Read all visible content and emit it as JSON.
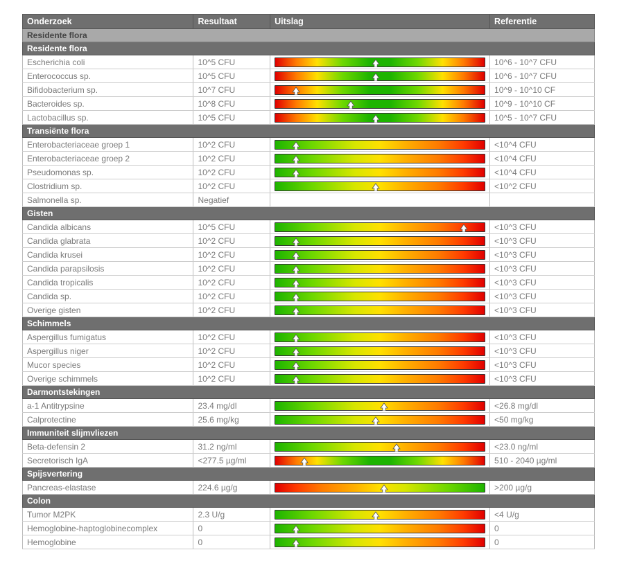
{
  "headers": {
    "onderzoek": "Onderzoek",
    "resultaat": "Resultaat",
    "uitslag": "Uitslag",
    "referentie": "Referentie"
  },
  "style": {
    "header_bg": "#6f6f6f",
    "header_text": "#ffffff",
    "section_bg": "#a9a9a9",
    "section_text": "#444444",
    "row_text": "#7a7a7a",
    "border": "#bbbbbb",
    "gauge_border": "#333333",
    "marker_fill": "#ffffff",
    "marker_stroke": "#555555",
    "font_size_pt": 9,
    "gradient_gyr": [
      "#1eb400",
      "#6fd800",
      "#d7e600",
      "#ffe000",
      "#ffb000",
      "#ff7a00",
      "#ff3a00",
      "#e00000"
    ],
    "gradient_rgr": [
      "#e00000",
      "#ff7a00",
      "#ffe000",
      "#6fd800",
      "#1eb400",
      "#1eb400",
      "#6fd800",
      "#ffe000",
      "#ff7a00",
      "#e00000"
    ],
    "gradient_ryg": [
      "#e00000",
      "#ff3a00",
      "#ff7a00",
      "#ffb000",
      "#ffe000",
      "#d7e600",
      "#6fd800",
      "#1eb400"
    ]
  },
  "section_top": {
    "title": "Residente flora"
  },
  "groups": [
    {
      "title": "Residente flora",
      "rows": [
        {
          "name": "Escherichia coli",
          "result": "10^5 CFU",
          "ref": "10^6 - 10^7 CFU",
          "gradient": "rgr",
          "marker_pct": 48
        },
        {
          "name": "Enterococcus sp.",
          "result": "10^5 CFU",
          "ref": "10^6 - 10^7 CFU",
          "gradient": "rgr",
          "marker_pct": 48
        },
        {
          "name": "Bifidobacterium sp.",
          "result": "10^7 CFU",
          "ref": "10^9 - 10^10 CF",
          "gradient": "rgr",
          "marker_pct": 10
        },
        {
          "name": "Bacteroides sp.",
          "result": "10^8 CFU",
          "ref": "10^9 - 10^10 CF",
          "gradient": "rgr",
          "marker_pct": 36
        },
        {
          "name": "Lactobacillus sp.",
          "result": "10^5 CFU",
          "ref": "10^5 - 10^7 CFU",
          "gradient": "rgr",
          "marker_pct": 48
        }
      ]
    },
    {
      "title": "Transiënte flora",
      "rows": [
        {
          "name": "Enterobacteriaceae groep 1",
          "result": "10^2 CFU",
          "ref": "<10^4 CFU",
          "gradient": "gyr",
          "marker_pct": 10
        },
        {
          "name": "Enterobacteriaceae groep 2",
          "result": "10^2 CFU",
          "ref": "<10^4 CFU",
          "gradient": "gyr",
          "marker_pct": 10
        },
        {
          "name": "Pseudomonas sp.",
          "result": "10^2 CFU",
          "ref": "<10^4 CFU",
          "gradient": "gyr",
          "marker_pct": 10
        },
        {
          "name": "Clostridium sp.",
          "result": "10^2 CFU",
          "ref": "<10^2 CFU",
          "gradient": "gyr",
          "marker_pct": 48
        },
        {
          "name": "Salmonella sp.",
          "result": "Negatief",
          "ref": "",
          "gradient": null,
          "marker_pct": null
        }
      ]
    },
    {
      "title": "Gisten",
      "rows": [
        {
          "name": "Candida albicans",
          "result": "10^5 CFU",
          "ref": "<10^3 CFU",
          "gradient": "gyr",
          "marker_pct": 90
        },
        {
          "name": "Candida glabrata",
          "result": "10^2 CFU",
          "ref": "<10^3 CFU",
          "gradient": "gyr",
          "marker_pct": 10
        },
        {
          "name": "Candida krusei",
          "result": "10^2 CFU",
          "ref": "<10^3 CFU",
          "gradient": "gyr",
          "marker_pct": 10
        },
        {
          "name": "Candida parapsilosis",
          "result": "10^2 CFU",
          "ref": "<10^3 CFU",
          "gradient": "gyr",
          "marker_pct": 10
        },
        {
          "name": "Candida tropicalis",
          "result": "10^2 CFU",
          "ref": "<10^3 CFU",
          "gradient": "gyr",
          "marker_pct": 10
        },
        {
          "name": "Candida sp.",
          "result": "10^2 CFU",
          "ref": "<10^3 CFU",
          "gradient": "gyr",
          "marker_pct": 10
        },
        {
          "name": "Overige gisten",
          "result": "10^2 CFU",
          "ref": "<10^3 CFU",
          "gradient": "gyr",
          "marker_pct": 10
        }
      ]
    },
    {
      "title": "Schimmels",
      "rows": [
        {
          "name": "Aspergillus fumigatus",
          "result": "10^2 CFU",
          "ref": "<10^3 CFU",
          "gradient": "gyr",
          "marker_pct": 10
        },
        {
          "name": "Aspergillus niger",
          "result": "10^2 CFU",
          "ref": "<10^3 CFU",
          "gradient": "gyr",
          "marker_pct": 10
        },
        {
          "name": "Mucor species",
          "result": "10^2 CFU",
          "ref": "<10^3 CFU",
          "gradient": "gyr",
          "marker_pct": 10
        },
        {
          "name": "Overige schimmels",
          "result": "10^2 CFU",
          "ref": "<10^3 CFU",
          "gradient": "gyr",
          "marker_pct": 10
        }
      ]
    },
    {
      "title": "Darmontstekingen",
      "rows": [
        {
          "name": "a-1 Antitrypsine",
          "result": "23.4 mg/dl",
          "ref": "<26.8 mg/dl",
          "gradient": "gyr",
          "marker_pct": 52
        },
        {
          "name": "Calprotectine",
          "result": "25.6 mg/kg",
          "ref": "<50 mg/kg",
          "gradient": "gyr",
          "marker_pct": 48
        }
      ]
    },
    {
      "title": "Immuniteit slijmvliezen",
      "rows": [
        {
          "name": "Beta-defensin 2",
          "result": "31.2 ng/ml",
          "ref": "<23.0 ng/ml",
          "gradient": "gyr",
          "marker_pct": 58
        },
        {
          "name": "Secretorisch IgA",
          "result": "<277.5 µg/ml",
          "ref": "510 - 2040 µg/ml",
          "gradient": "rgr",
          "marker_pct": 14
        }
      ]
    },
    {
      "title": "Spijsvertering",
      "rows": [
        {
          "name": "Pancreas-elastase",
          "result": "224.6 µg/g",
          "ref": ">200 µg/g",
          "gradient": "ryg",
          "marker_pct": 52
        }
      ]
    },
    {
      "title": "Colon",
      "rows": [
        {
          "name": "Tumor M2PK",
          "result": "2.3 U/g",
          "ref": "<4 U/g",
          "gradient": "gyr",
          "marker_pct": 48
        },
        {
          "name": "Hemoglobine-haptoglobinecomplex",
          "result": "0",
          "ref": "0",
          "gradient": "gyr",
          "marker_pct": 10
        },
        {
          "name": "Hemoglobine",
          "result": "0",
          "ref": "0",
          "gradient": "gyr",
          "marker_pct": 10
        }
      ]
    }
  ]
}
